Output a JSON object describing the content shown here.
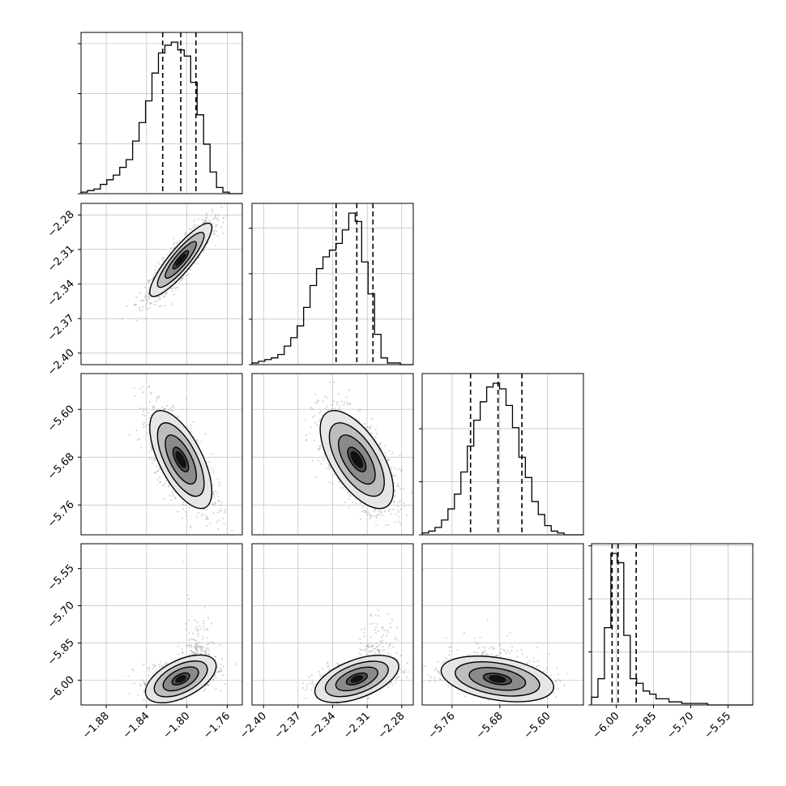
{
  "colors": {
    "axes": "#000000",
    "grid": "#b0b0b0",
    "hist": "#000000",
    "scatter": "#8c8c8c",
    "background": "#ffffff"
  },
  "chart_data": {
    "type": "corner",
    "grid": true,
    "params": [
      {
        "range": [
          -1.905,
          -1.745
        ],
        "ticks": [],
        "x_tick_labels": [
          "−1.88",
          "−1.84",
          "−1.80",
          "−1.76"
        ]
      },
      {
        "range": [
          -2.41,
          -2.27
        ],
        "ticks": [
          -2.28,
          -2.31,
          -2.34,
          -2.37,
          -2.4
        ],
        "tick_labels": [
          "−2.28",
          "−2.31",
          "−2.34",
          "−2.37",
          "−2.40"
        ],
        "x_ticks": [
          -2.4,
          -2.37,
          -2.34,
          -2.31,
          -2.28
        ],
        "x_tick_labels": [
          "−2.40",
          "−2.37",
          "−2.34",
          "−2.31",
          "−2.28"
        ]
      },
      {
        "range": [
          -5.81,
          -5.54
        ],
        "ticks": [
          -5.6,
          -5.68,
          -5.76
        ],
        "tick_labels": [
          "−5.60",
          "−5.68",
          "−5.76"
        ],
        "x_ticks": [
          -5.76,
          -5.68,
          -5.6
        ],
        "x_tick_labels": [
          "−5.76",
          "−5.68",
          "−5.60"
        ]
      },
      {
        "range": [
          -6.1,
          -5.45
        ],
        "ticks": [
          -5.55,
          -5.7,
          -5.85,
          -6.0
        ],
        "tick_labels": [
          "−5.55",
          "−5.70",
          "−5.85",
          "−6.00"
        ],
        "x_ticks": [
          -6.0,
          -5.85,
          -5.7,
          -5.55
        ],
        "x_tick_labels": [
          "−6.00",
          "−5.85",
          "−5.70",
          "−5.55"
        ]
      }
    ],
    "param0_x_ticks": [
      -1.88,
      -1.84,
      -1.8,
      -1.76
    ],
    "histograms": [
      {
        "param": 0,
        "edges_start": -1.905,
        "bin_width": 0.0064,
        "counts": [
          1,
          2,
          3,
          6,
          9,
          12,
          17,
          22,
          34,
          46,
          60,
          78,
          91,
          96,
          98,
          93,
          89,
          72,
          51,
          32,
          14,
          4,
          1,
          0,
          0
        ],
        "quantiles": [
          -1.824,
          -1.806,
          -1.791
        ]
      },
      {
        "param": 1,
        "edges_start": -2.41,
        "bin_width": 0.0056,
        "counts": [
          1,
          2,
          3,
          4,
          6,
          11,
          16,
          23,
          34,
          47,
          57,
          64,
          68,
          72,
          80,
          90,
          85,
          61,
          42,
          18,
          4,
          1,
          1,
          0,
          0
        ],
        "quantiles": [
          -2.337,
          -2.319,
          -2.305
        ]
      },
      {
        "param": 2,
        "edges_start": -5.81,
        "bin_width": 0.0108,
        "counts": [
          1,
          2,
          4,
          8,
          14,
          22,
          34,
          48,
          62,
          72,
          80,
          82,
          79,
          70,
          58,
          42,
          31,
          18,
          11,
          5,
          2,
          1,
          0,
          0,
          0
        ],
        "quantiles": [
          -5.729,
          -5.683,
          -5.643
        ]
      },
      {
        "param": 3,
        "edges_start": -6.1,
        "bin_width": 0.026,
        "counts": [
          5,
          17,
          50,
          98,
          92,
          45,
          17,
          14,
          9,
          7,
          4,
          4,
          2,
          2,
          1,
          1,
          1,
          1,
          0,
          0,
          0,
          0,
          0,
          0,
          0
        ],
        "quantiles": [
          -6.017,
          -5.993,
          -5.92
        ]
      },
      {
        "note_hist_ticks": ""
      }
    ],
    "hist_yticks_norm": [
      [
        0,
        0.33,
        0.66,
        0.99
      ],
      [
        0,
        0.3,
        0.6,
        0.9
      ],
      [
        0,
        0.35,
        0.7
      ],
      [
        0,
        0.35,
        0.7,
        1.05
      ]
    ],
    "pairs": [
      {
        "x": 0,
        "y": 1,
        "mean": [
          -1.806,
          -2.319
        ],
        "sd": [
          0.0154,
          0.0159
        ],
        "rho": 0.88
      },
      {
        "x": 0,
        "y": 2,
        "mean": [
          -1.806,
          -5.684
        ],
        "sd": [
          0.0154,
          0.041
        ],
        "rho": -0.65
      },
      {
        "x": 1,
        "y": 2,
        "mean": [
          -2.319,
          -5.684
        ],
        "sd": [
          0.0159,
          0.041
        ],
        "rho": -0.62
      },
      {
        "x": 0,
        "y": 3,
        "mean": [
          -1.806,
          -5.995
        ],
        "sd": [
          0.0154,
          0.045
        ],
        "rho": 0.45
      },
      {
        "x": 1,
        "y": 3,
        "mean": [
          -2.319,
          -5.995
        ],
        "sd": [
          0.0159,
          0.045
        ],
        "rho": 0.45
      },
      {
        "x": 2,
        "y": 3,
        "mean": [
          -5.684,
          -5.995
        ],
        "sd": [
          0.041,
          0.045
        ],
        "rho": -0.3
      }
    ],
    "contour_levels_sigma": [
      0.5,
      1.0,
      1.5,
      2.0
    ]
  }
}
